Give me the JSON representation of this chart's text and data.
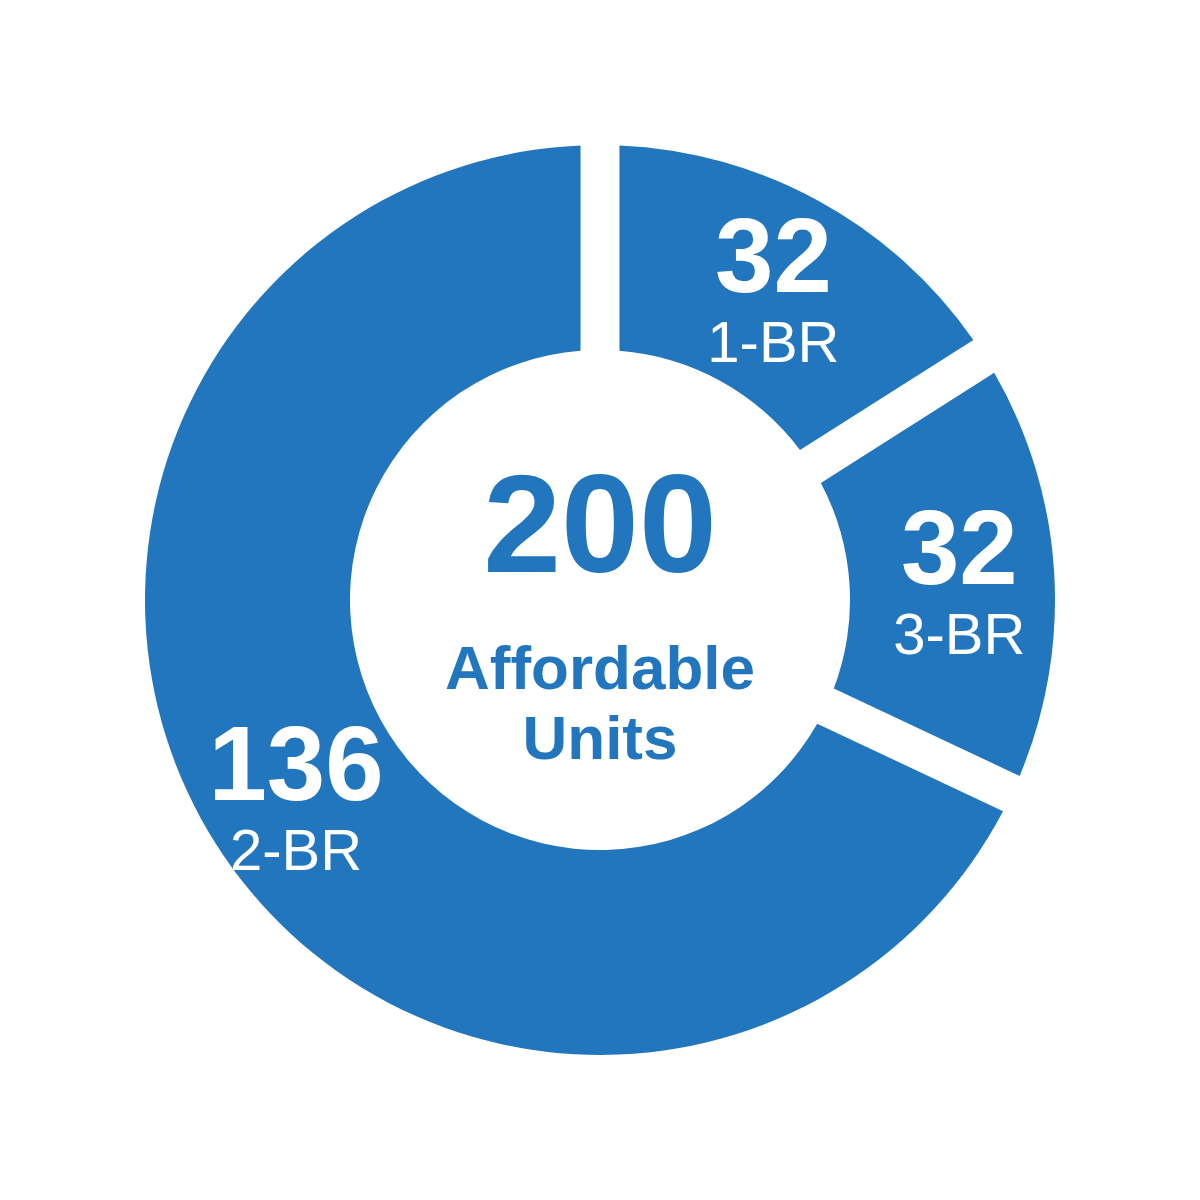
{
  "chart_data": {
    "type": "donut",
    "categories": [
      "1-BR",
      "3-BR",
      "2-BR"
    ],
    "values": [
      32,
      32,
      136
    ],
    "colors": [
      "#2176bd",
      "#2176bd",
      "#2176bd"
    ],
    "data_labels": true,
    "annotations": [
      "200",
      "Affordable Units"
    ]
  }
}
